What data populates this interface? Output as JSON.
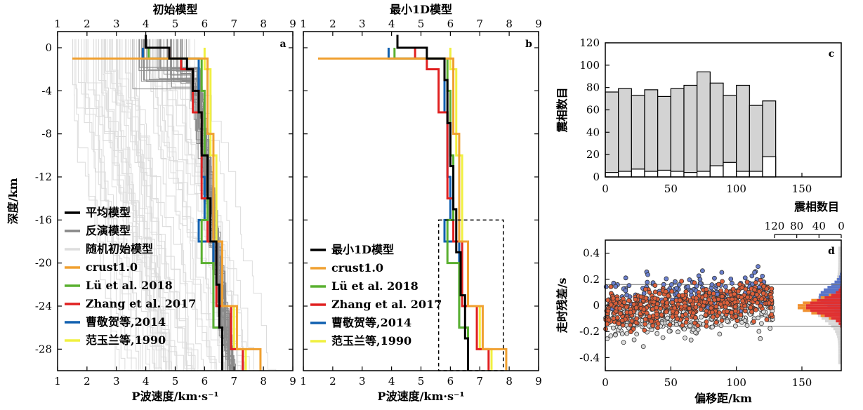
{
  "chart_data": [
    {
      "panel": "a",
      "type": "line",
      "title": "初始模型",
      "xlabel": "P波速度/km·s⁻¹",
      "ylabel": "深度/km",
      "xlim": [
        1,
        9
      ],
      "ylim": [
        -30,
        1.5
      ],
      "xticks": [
        1,
        2,
        3,
        4,
        5,
        6,
        7,
        8,
        9
      ],
      "yticks": [
        0,
        -4,
        -8,
        -12,
        -16,
        -20,
        -24,
        -28
      ],
      "legend_position": "bottom-left",
      "series": [
        {
          "name": "平均模型",
          "color": "#000000",
          "width": 3,
          "points": [
            [
              4.0,
              1.2
            ],
            [
              4.0,
              0
            ],
            [
              4.8,
              0
            ],
            [
              4.8,
              -1
            ],
            [
              5.4,
              -1
            ],
            [
              5.4,
              -2
            ],
            [
              5.6,
              -2
            ],
            [
              5.6,
              -4
            ],
            [
              5.8,
              -4
            ],
            [
              5.8,
              -6
            ],
            [
              5.9,
              -6
            ],
            [
              5.9,
              -10
            ],
            [
              6.1,
              -10
            ],
            [
              6.1,
              -14
            ],
            [
              6.2,
              -14
            ],
            [
              6.2,
              -18
            ],
            [
              6.4,
              -18
            ],
            [
              6.4,
              -22
            ],
            [
              6.5,
              -22
            ],
            [
              6.5,
              -26
            ],
            [
              6.6,
              -26
            ],
            [
              6.6,
              -30
            ]
          ]
        },
        {
          "name": "反演模型",
          "color": "#888888",
          "width": 3,
          "points": []
        },
        {
          "name": "随机初始模型",
          "color": "#dddddd",
          "width": 3,
          "points": []
        },
        {
          "name": "crust1.0",
          "color": "#f0a030",
          "width": 3,
          "points": [
            [
              1.5,
              -1
            ],
            [
              6.1,
              -1
            ],
            [
              6.1,
              -8
            ],
            [
              6.3,
              -8
            ],
            [
              6.3,
              -18
            ],
            [
              6.6,
              -18
            ],
            [
              6.6,
              -24
            ],
            [
              7.1,
              -24
            ],
            [
              7.1,
              -28
            ],
            [
              7.9,
              -28
            ],
            [
              7.9,
              -30
            ]
          ]
        },
        {
          "name": "Lü et al. 2018",
          "color": "#5ab030",
          "width": 3,
          "points": [
            [
              4.1,
              0
            ],
            [
              4.1,
              -1
            ],
            [
              5.9,
              -1
            ],
            [
              5.9,
              -4
            ],
            [
              6.0,
              -4
            ],
            [
              6.0,
              -10
            ],
            [
              6.1,
              -10
            ],
            [
              6.1,
              -16
            ],
            [
              5.9,
              -16
            ],
            [
              5.9,
              -20
            ],
            [
              6.3,
              -20
            ],
            [
              6.3,
              -26
            ],
            [
              6.6,
              -26
            ],
            [
              6.6,
              -30
            ]
          ]
        },
        {
          "name": "Zhang et al. 2017",
          "color": "#e02020",
          "width": 3,
          "points": [
            [
              4.8,
              0
            ],
            [
              4.8,
              -1
            ],
            [
              5.2,
              -1
            ],
            [
              5.2,
              -2
            ],
            [
              5.6,
              -2
            ],
            [
              5.6,
              -6
            ],
            [
              5.9,
              -6
            ],
            [
              5.9,
              -14
            ],
            [
              6.1,
              -14
            ],
            [
              6.1,
              -18
            ],
            [
              6.4,
              -18
            ],
            [
              6.4,
              -24
            ],
            [
              6.9,
              -24
            ],
            [
              6.9,
              -28
            ],
            [
              7.3,
              -28
            ],
            [
              7.3,
              -30
            ]
          ]
        },
        {
          "name": "曹敬贺等,2014",
          "color": "#1060b0",
          "width": 3,
          "points": [
            [
              3.9,
              0
            ],
            [
              3.9,
              -1
            ],
            [
              5.8,
              -1
            ],
            [
              5.8,
              -6
            ],
            [
              5.9,
              -6
            ],
            [
              5.9,
              -12
            ],
            [
              6.0,
              -12
            ],
            [
              6.0,
              -16
            ],
            [
              5.8,
              -16
            ],
            [
              5.8,
              -18
            ],
            [
              6.3,
              -18
            ],
            [
              6.3,
              -26
            ],
            [
              6.6,
              -26
            ],
            [
              6.6,
              -30
            ]
          ]
        },
        {
          "name": "范玉兰等,1990",
          "color": "#f0f040",
          "width": 3,
          "points": [
            [
              6.0,
              0
            ],
            [
              6.0,
              -2
            ],
            [
              6.2,
              -2
            ],
            [
              6.2,
              -10
            ],
            [
              6.4,
              -10
            ],
            [
              6.4,
              -18
            ],
            [
              6.6,
              -18
            ],
            [
              6.6,
              -24
            ],
            [
              7.0,
              -24
            ],
            [
              7.0,
              -28
            ],
            [
              7.4,
              -28
            ],
            [
              7.4,
              -30
            ]
          ]
        }
      ]
    },
    {
      "panel": "b",
      "type": "line",
      "title": "最小1D模型",
      "xlabel": "P波速度/km·s⁻¹",
      "xlim": [
        1,
        9
      ],
      "ylim": [
        -30,
        1.5
      ],
      "xticks": [
        1,
        2,
        3,
        4,
        5,
        6,
        7,
        8,
        9
      ],
      "legend_position": "bottom-left",
      "series": [
        {
          "name": "最小1D模型",
          "color": "#000000",
          "width": 3,
          "points": [
            [
              4.2,
              1.2
            ],
            [
              4.2,
              0
            ],
            [
              5.2,
              0
            ],
            [
              5.2,
              -1
            ],
            [
              5.8,
              -1
            ],
            [
              5.8,
              -3
            ],
            [
              5.9,
              -3
            ],
            [
              5.9,
              -7
            ],
            [
              6.0,
              -7
            ],
            [
              6.0,
              -11
            ],
            [
              6.1,
              -11
            ],
            [
              6.1,
              -15
            ],
            [
              6.2,
              -15
            ],
            [
              6.2,
              -19
            ],
            [
              6.35,
              -19
            ],
            [
              6.35,
              -23
            ],
            [
              6.5,
              -23
            ],
            [
              6.5,
              -27
            ],
            [
              6.6,
              -27
            ],
            [
              6.6,
              -30
            ]
          ]
        },
        {
          "name": "crust1.0",
          "color": "#f0a030",
          "width": 3,
          "points": [
            [
              1.5,
              -1
            ],
            [
              6.1,
              -1
            ],
            [
              6.1,
              -8
            ],
            [
              6.3,
              -8
            ],
            [
              6.3,
              -18
            ],
            [
              6.6,
              -18
            ],
            [
              6.6,
              -24
            ],
            [
              7.1,
              -24
            ],
            [
              7.1,
              -28
            ],
            [
              7.9,
              -28
            ],
            [
              7.9,
              -30
            ]
          ]
        },
        {
          "name": "Lü et al. 2018",
          "color": "#5ab030",
          "width": 3,
          "points": [
            [
              4.1,
              0
            ],
            [
              4.1,
              -1
            ],
            [
              5.9,
              -1
            ],
            [
              5.9,
              -4
            ],
            [
              6.0,
              -4
            ],
            [
              6.0,
              -10
            ],
            [
              6.1,
              -10
            ],
            [
              6.1,
              -16
            ],
            [
              5.9,
              -16
            ],
            [
              5.9,
              -20
            ],
            [
              6.3,
              -20
            ],
            [
              6.3,
              -26
            ],
            [
              6.6,
              -26
            ],
            [
              6.6,
              -30
            ]
          ]
        },
        {
          "name": "Zhang et al. 2017",
          "color": "#e02020",
          "width": 3,
          "points": [
            [
              4.8,
              0
            ],
            [
              4.8,
              -1
            ],
            [
              5.2,
              -1
            ],
            [
              5.2,
              -2
            ],
            [
              5.6,
              -2
            ],
            [
              5.6,
              -6
            ],
            [
              5.9,
              -6
            ],
            [
              5.9,
              -14
            ],
            [
              6.1,
              -14
            ],
            [
              6.1,
              -18
            ],
            [
              6.4,
              -18
            ],
            [
              6.4,
              -24
            ],
            [
              6.9,
              -24
            ],
            [
              6.9,
              -28
            ],
            [
              7.3,
              -28
            ],
            [
              7.3,
              -30
            ]
          ]
        },
        {
          "name": "曹敬贺等,2014",
          "color": "#1060b0",
          "width": 3,
          "points": [
            [
              3.9,
              0
            ],
            [
              3.9,
              -1
            ],
            [
              5.8,
              -1
            ],
            [
              5.8,
              -6
            ],
            [
              5.9,
              -6
            ],
            [
              5.9,
              -12
            ],
            [
              6.0,
              -12
            ],
            [
              6.0,
              -16
            ],
            [
              5.8,
              -16
            ],
            [
              5.8,
              -18
            ],
            [
              6.3,
              -18
            ],
            [
              6.3,
              -26
            ],
            [
              6.6,
              -26
            ],
            [
              6.6,
              -30
            ]
          ]
        },
        {
          "name": "范玉兰等,1990",
          "color": "#f0f040",
          "width": 3,
          "points": [
            [
              6.0,
              0
            ],
            [
              6.0,
              -2
            ],
            [
              6.2,
              -2
            ],
            [
              6.2,
              -10
            ],
            [
              6.4,
              -10
            ],
            [
              6.4,
              -18
            ],
            [
              6.6,
              -18
            ],
            [
              6.6,
              -24
            ],
            [
              7.0,
              -24
            ],
            [
              7.0,
              -28
            ],
            [
              7.4,
              -28
            ],
            [
              7.4,
              -30
            ]
          ]
        }
      ],
      "annotation_box": {
        "x": [
          5.6,
          7.8
        ],
        "y": [
          -30,
          -16
        ]
      }
    },
    {
      "panel": "c",
      "type": "bar",
      "xlabel": "震相数目",
      "ylabel": "震相数目",
      "xlim": [
        0,
        180
      ],
      "ylim": [
        0,
        120
      ],
      "xticks": [
        0,
        50,
        100,
        150
      ],
      "yticks": [
        0,
        20,
        40,
        60,
        80,
        100,
        120
      ],
      "bin_width": 10,
      "bin_starts": [
        0,
        10,
        20,
        30,
        40,
        50,
        60,
        70,
        80,
        90,
        100,
        110,
        120
      ],
      "values": [
        76,
        79,
        73,
        78,
        72,
        79,
        82,
        94,
        84,
        73,
        82,
        64,
        68
      ],
      "inner_values": [
        4,
        5,
        7,
        5,
        6,
        5,
        4,
        5,
        10,
        13,
        5,
        5,
        18
      ]
    },
    {
      "panel": "d",
      "type": "scatter",
      "xlabel": "偏移距/km",
      "ylabel": "走时残差/s",
      "xlim": [
        0,
        180
      ],
      "ylim": [
        -0.5,
        0.5
      ],
      "xticks": [
        0,
        50,
        100,
        150
      ],
      "yticks": [
        0.4,
        0.2,
        0,
        -0.2,
        -0.4
      ],
      "ref_lines": [
        0.16,
        -0.16
      ],
      "top_axis_label": "震相数目",
      "top_axis_ticks": [
        120,
        80,
        40,
        0
      ]
    }
  ]
}
